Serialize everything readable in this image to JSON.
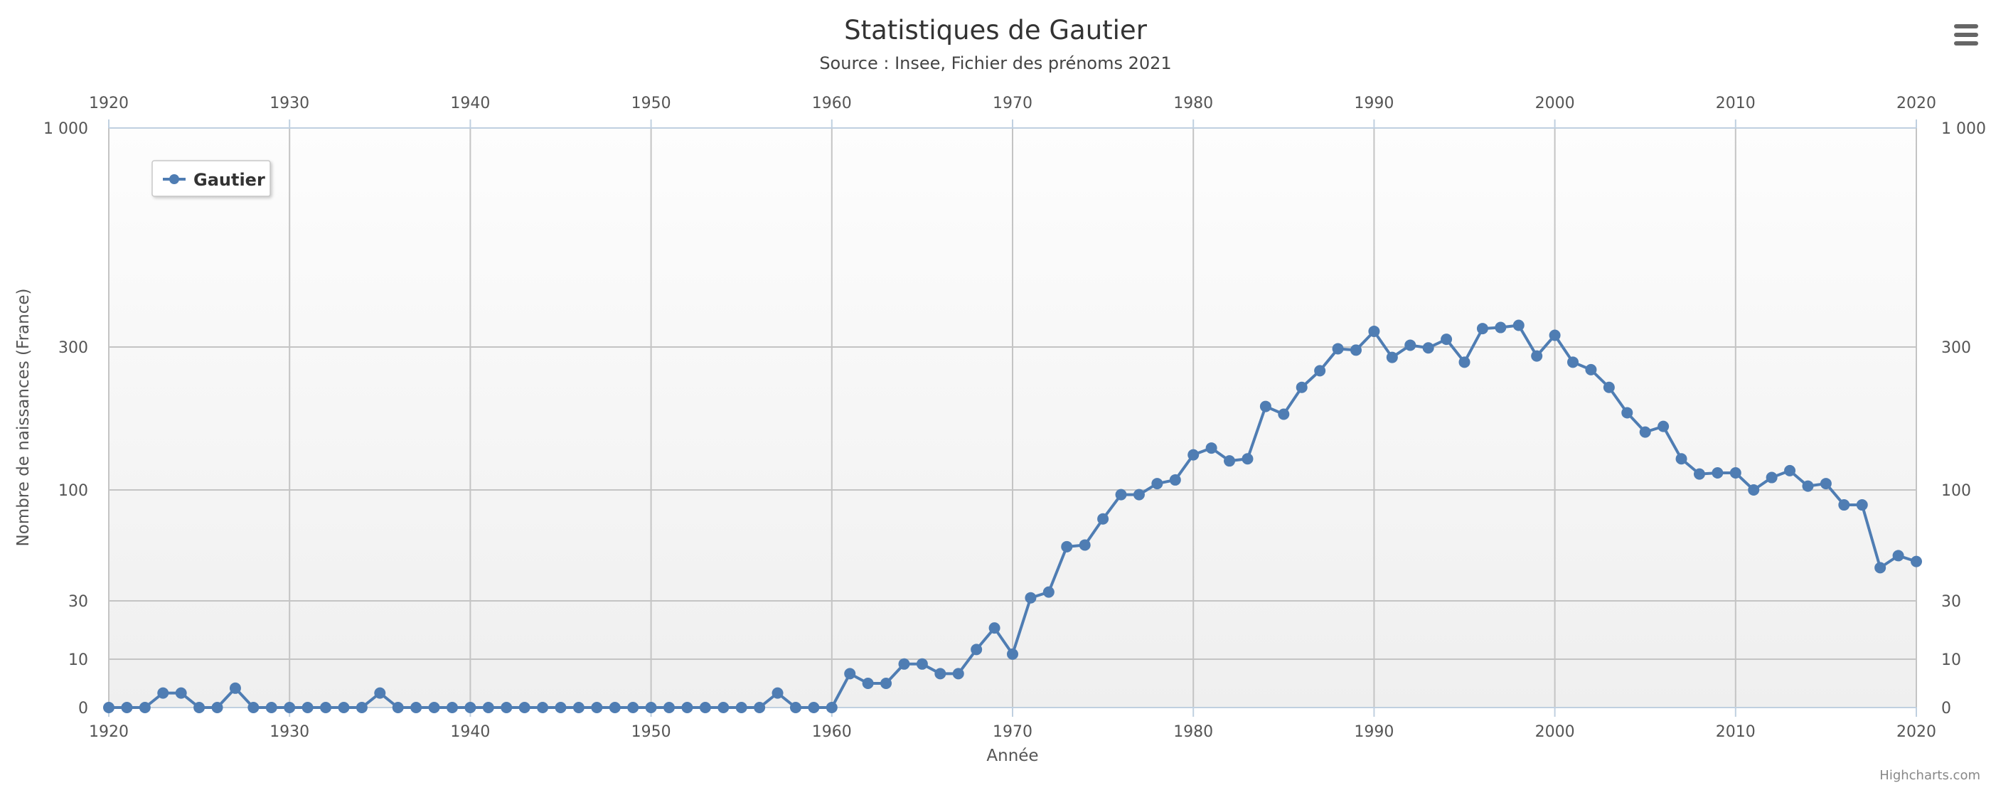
{
  "chart_data": {
    "type": "line",
    "title": "Statistiques de Gautier",
    "subtitle": "Source : Insee, Fichier des prénoms 2021",
    "xlabel": "Année",
    "ylabel": "Nombre de naissances (France)",
    "xlim": [
      1920,
      2020
    ],
    "x_ticks": [
      1920,
      1930,
      1940,
      1950,
      1960,
      1970,
      1980,
      1990,
      2000,
      2010,
      2020
    ],
    "y_ticks": [
      0,
      10,
      30,
      100,
      300,
      1000
    ],
    "y_tick_labels": [
      "0",
      "10",
      "30",
      "100",
      "300",
      "1 000"
    ],
    "ylim": [
      0,
      1000
    ],
    "y_scale": "non-linear (compressed, log-like)",
    "grid": true,
    "legend_placement": "top-left",
    "series": [
      {
        "name": "Gautier",
        "color": "#4f7db3",
        "x": [
          1920,
          1921,
          1922,
          1923,
          1924,
          1925,
          1926,
          1927,
          1928,
          1929,
          1930,
          1931,
          1932,
          1933,
          1934,
          1935,
          1936,
          1937,
          1938,
          1939,
          1940,
          1941,
          1942,
          1943,
          1944,
          1945,
          1946,
          1947,
          1948,
          1949,
          1950,
          1951,
          1952,
          1953,
          1954,
          1955,
          1956,
          1957,
          1958,
          1959,
          1960,
          1961,
          1962,
          1963,
          1964,
          1965,
          1966,
          1967,
          1968,
          1969,
          1970,
          1971,
          1972,
          1973,
          1974,
          1975,
          1976,
          1977,
          1978,
          1979,
          1980,
          1981,
          1982,
          1983,
          1984,
          1985,
          1986,
          1987,
          1988,
          1989,
          1990,
          1991,
          1992,
          1993,
          1994,
          1995,
          1996,
          1997,
          1998,
          1999,
          2000,
          2001,
          2002,
          2003,
          2004,
          2005,
          2006,
          2007,
          2008,
          2009,
          2010,
          2011,
          2012,
          2013,
          2014,
          2015,
          2016,
          2017,
          2018,
          2019,
          2020
        ],
        "values": [
          0,
          0,
          0,
          3,
          3,
          0,
          0,
          4,
          0,
          0,
          0,
          0,
          0,
          0,
          0,
          3,
          0,
          0,
          0,
          0,
          0,
          0,
          0,
          0,
          0,
          0,
          0,
          0,
          0,
          0,
          0,
          0,
          0,
          0,
          0,
          0,
          0,
          3,
          0,
          0,
          0,
          7,
          5,
          5,
          9,
          9,
          7,
          7,
          12,
          18,
          11,
          31,
          33,
          54,
          55,
          73,
          95,
          95,
          105,
          108,
          131,
          138,
          125,
          127,
          190,
          179,
          220,
          250,
          296,
          293,
          327,
          277,
          303,
          298,
          313,
          267,
          332,
          334,
          338,
          280,
          320,
          267,
          252,
          220,
          181,
          156,
          163,
          127,
          113,
          114,
          114,
          100,
          110,
          116,
          103,
          105,
          85,
          85,
          43,
          49,
          46
        ]
      }
    ]
  },
  "ui": {
    "menu_icon": "hamburger-menu-icon",
    "credits": "Highcharts.com"
  }
}
